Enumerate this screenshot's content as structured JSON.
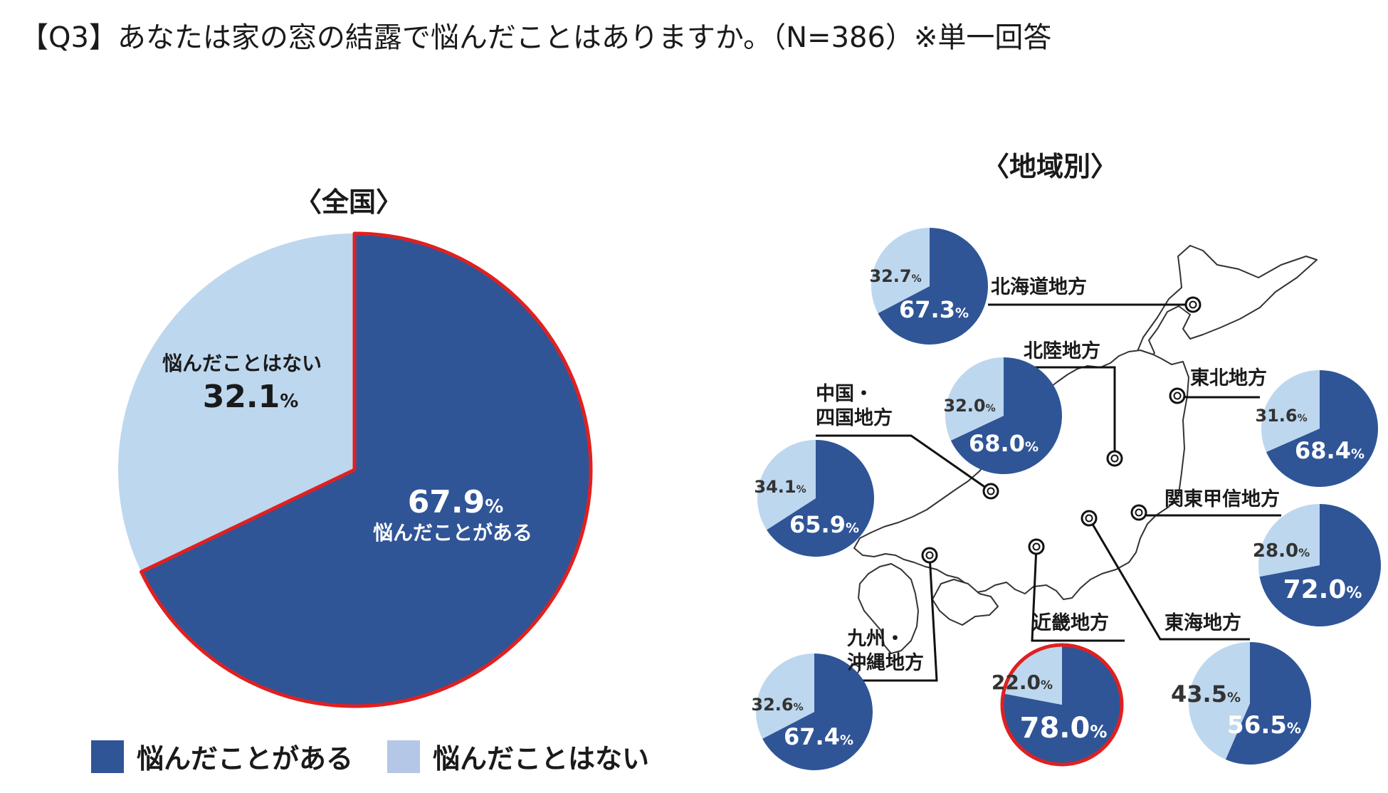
{
  "title": "【Q3】あなたは家の窓の結露で悩んだことはありますか。（N=386）※単一回答",
  "colors": {
    "dark": "#2f5597",
    "light": "#bdd7ee",
    "highlight": "#e02020",
    "label_dark_bg": "#ffffff",
    "label_light_bg": "#333333"
  },
  "chart_data": [
    {
      "type": "pie",
      "id": "national",
      "title": "〈全国〉",
      "labels": [
        "悩んだことがある",
        "悩んだことはない"
      ],
      "values": [
        67.9,
        32.1
      ],
      "unit": "%",
      "highlighted_slice": "悩んだことがある"
    },
    {
      "type": "pie",
      "id": "regional",
      "title": "〈地域別〉",
      "labels": [
        "悩んだことがある",
        "悩んだことはない"
      ],
      "regions": [
        {
          "name": "北海道地方",
          "values": [
            67.3,
            32.7
          ]
        },
        {
          "name": "東北地方",
          "values": [
            68.4,
            31.6
          ]
        },
        {
          "name": "関東甲信地方",
          "values": [
            72.0,
            28.0
          ]
        },
        {
          "name": "北陸地方",
          "values": [
            68.0,
            32.0
          ]
        },
        {
          "name": "東海地方",
          "values": [
            56.5,
            43.5
          ]
        },
        {
          "name": "近畿地方",
          "values": [
            78.0,
            22.0
          ],
          "highlighted": true
        },
        {
          "name": "中国・四国地方",
          "values": [
            65.9,
            34.1
          ]
        },
        {
          "name": "九州・沖縄地方",
          "values": [
            67.4,
            32.6
          ]
        }
      ],
      "unit": "%"
    }
  ],
  "legend": [
    {
      "label": "悩んだことがある",
      "color": "#2f5597"
    },
    {
      "label": "悩んだことはない",
      "color": "#b4c7e7"
    }
  ],
  "national_labels": {
    "yes_label": "悩んだことがある",
    "no_label": "悩んだことはない",
    "yes_value": "67.9",
    "no_value": "32.1",
    "unit": "%"
  },
  "region_display": [
    {
      "name_lines": [
        "北海道地方"
      ],
      "yes": "67.3",
      "no": "32.7"
    },
    {
      "name_lines": [
        "東北地方"
      ],
      "yes": "68.4",
      "no": "31.6"
    },
    {
      "name_lines": [
        "関東甲信地方"
      ],
      "yes": "72.0",
      "no": "28.0"
    },
    {
      "name_lines": [
        "北陸地方"
      ],
      "yes": "68.0",
      "no": "32.0"
    },
    {
      "name_lines": [
        "東海地方"
      ],
      "yes": "56.5",
      "no": "43.5"
    },
    {
      "name_lines": [
        "近畿地方"
      ],
      "yes": "78.0",
      "no": "22.0"
    },
    {
      "name_lines": [
        "中国・",
        "四国地方"
      ],
      "yes": "65.9",
      "no": "34.1"
    },
    {
      "name_lines": [
        "九州・",
        "沖縄地方"
      ],
      "yes": "67.4",
      "no": "32.6"
    }
  ]
}
